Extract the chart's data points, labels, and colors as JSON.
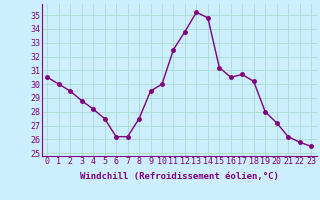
{
  "x": [
    0,
    1,
    2,
    3,
    4,
    5,
    6,
    7,
    8,
    9,
    10,
    11,
    12,
    13,
    14,
    15,
    16,
    17,
    18,
    19,
    20,
    21,
    22,
    23
  ],
  "y": [
    30.5,
    30.0,
    29.5,
    28.8,
    28.2,
    27.5,
    26.2,
    26.2,
    27.5,
    29.5,
    30.0,
    32.5,
    33.8,
    35.2,
    34.8,
    31.2,
    30.5,
    30.7,
    30.2,
    28.0,
    27.2,
    26.2,
    25.8,
    25.5
  ],
  "line_color": "#800080",
  "marker": "o",
  "markersize": 2.5,
  "linewidth": 1.0,
  "xlabel": "Windchill (Refroidissement éolien,°C)",
  "xlabel_fontsize": 6.5,
  "ylabel_ticks": [
    25,
    26,
    27,
    28,
    29,
    30,
    31,
    32,
    33,
    34,
    35
  ],
  "xticks": [
    0,
    1,
    2,
    3,
    4,
    5,
    6,
    7,
    8,
    9,
    10,
    11,
    12,
    13,
    14,
    15,
    16,
    17,
    18,
    19,
    20,
    21,
    22,
    23
  ],
  "xlim": [
    -0.5,
    23.5
  ],
  "ylim": [
    24.8,
    35.8
  ],
  "bg_color": "#cceeff",
  "grid_color": "#aaddcc",
  "tick_color": "#800080",
  "tick_fontsize": 6.0,
  "border_color": "#800080"
}
